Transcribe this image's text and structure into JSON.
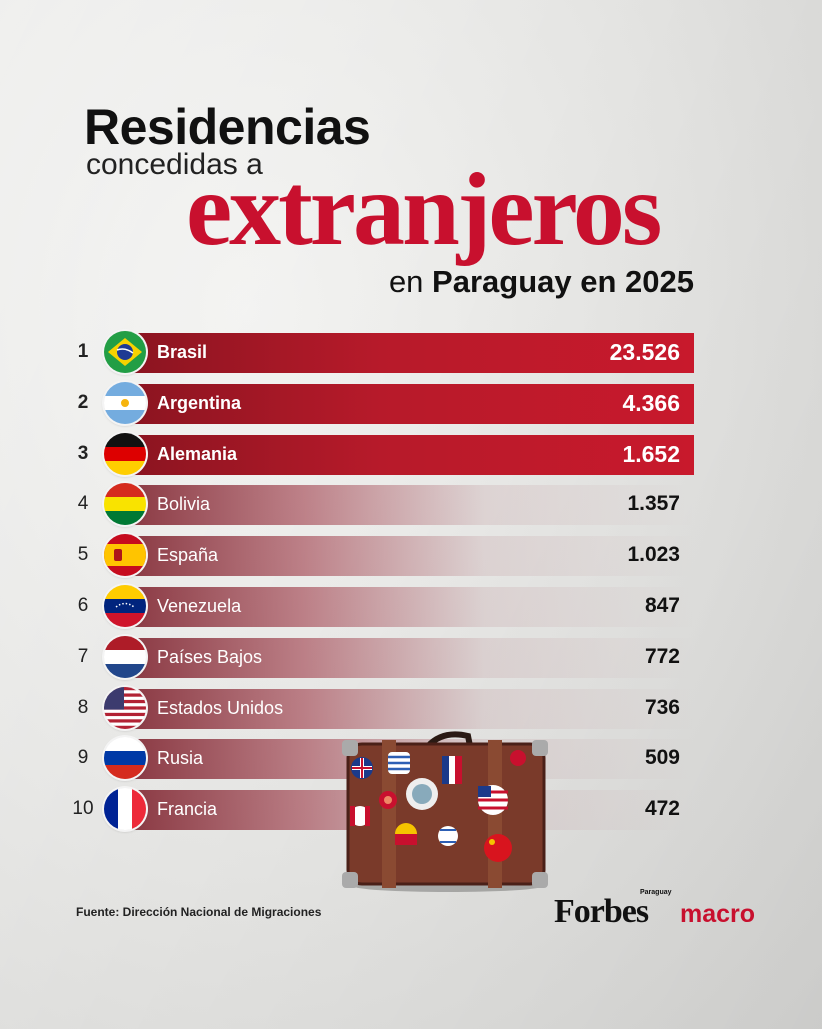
{
  "title": {
    "line1": "Residencias",
    "line2": "concedidas a",
    "line3": "extranjeros",
    "line4_prefix": "en",
    "line4_bold": "Paraguay en 2025"
  },
  "chart_data": {
    "type": "bar",
    "orientation": "horizontal",
    "ranks": [
      "1",
      "2",
      "3",
      "4",
      "5",
      "6",
      "7",
      "8",
      "9",
      "10"
    ],
    "categories": [
      "Brasil",
      "Argentina",
      "Alemania",
      "Bolivia",
      "España",
      "Venezuela",
      "Países Bajos",
      "Estados Unidos",
      "Rusia",
      "Francia"
    ],
    "values": [
      23526,
      4366,
      1652,
      1357,
      1023,
      847,
      772,
      736,
      509,
      472
    ],
    "value_labels": [
      "23.526",
      "4.366",
      "1.652",
      "1.357",
      "1.023",
      "847",
      "772",
      "736",
      "509",
      "472"
    ],
    "flags": [
      "brazil-flag",
      "argentina-flag",
      "germany-flag",
      "bolivia-flag",
      "spain-flag",
      "venezuela-flag",
      "netherlands-flag",
      "usa-flag",
      "russia-flag",
      "france-flag"
    ],
    "highlight_top": 3,
    "colors": {
      "highlight": "#c8102e",
      "highlight_dark": "#8a1420",
      "rest": "#8c2a38"
    }
  },
  "footer": {
    "source": "Fuente: Dirección Nacional de Migraciones",
    "brand": "Forbes",
    "brand_sub": "Paraguay",
    "brand_section": "macro"
  }
}
